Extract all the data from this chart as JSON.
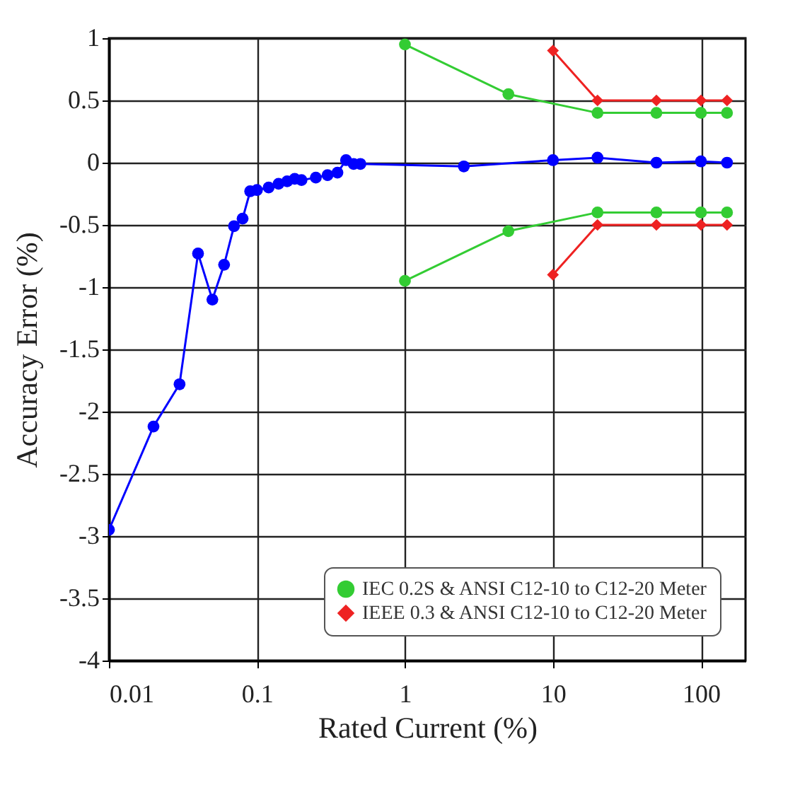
{
  "chart_data": {
    "type": "line",
    "xlabel": "Rated Current (%)",
    "ylabel": "Accuracy Error (%)",
    "log": "x",
    "grid": true,
    "legend": "bottom right",
    "xlim": [
      0.01,
      200
    ],
    "xticks": [
      0.01,
      0.1,
      1,
      10,
      100
    ],
    "ylim": [
      -4,
      1
    ],
    "yticks": [
      -4,
      -3.5,
      -3,
      -2.5,
      -2,
      -1.5,
      -1,
      -0.5,
      0,
      0.5,
      1
    ],
    "series": [
      {
        "color": "#0000ff",
        "marker": "circle",
        "x": [
          0.01,
          0.02,
          0.03,
          0.04,
          0.05,
          0.06,
          0.07,
          0.08,
          0.09,
          0.1,
          0.12,
          0.14,
          0.16,
          0.18,
          0.2,
          0.25,
          0.3,
          0.35,
          0.4,
          0.45,
          0.5,
          2.5,
          10,
          20,
          50,
          100,
          150
        ],
        "values": [
          -2.95,
          -2.12,
          -1.78,
          -0.73,
          -1.1,
          -0.82,
          -0.51,
          -0.45,
          -0.23,
          -0.22,
          -0.2,
          -0.17,
          -0.15,
          -0.13,
          -0.14,
          -0.12,
          -0.1,
          -0.08,
          0.02,
          -0.01,
          -0.01,
          -0.03,
          0.02,
          0.04,
          0,
          0.01,
          0
        ]
      },
      {
        "name": "IEC 0.2S & ANSI C12-10 to C12-20 Meter",
        "color": "#33cc33",
        "marker": "circle",
        "x": [
          1,
          5,
          20,
          50,
          100,
          150
        ],
        "values": [
          0.95,
          0.55,
          0.4,
          0.4,
          0.4,
          0.4
        ]
      },
      {
        "color": "#33cc33",
        "marker": "circle",
        "x": [
          1,
          5,
          20,
          50,
          100,
          150
        ],
        "values": [
          -0.95,
          -0.55,
          -0.4,
          -0.4,
          -0.4,
          -0.4
        ]
      },
      {
        "name": "IEEE 0.3 & ANSI C12-10 to C12-20 Meter",
        "color": "#ee2222",
        "marker": "diamond",
        "x": [
          10,
          20,
          50,
          100,
          150
        ],
        "values": [
          0.9,
          0.5,
          0.5,
          0.5,
          0.5
        ]
      },
      {
        "color": "#ee2222",
        "marker": "diamond",
        "x": [
          10,
          20,
          50,
          100,
          150
        ],
        "values": [
          -0.9,
          -0.5,
          -0.5,
          -0.5,
          -0.5
        ]
      }
    ]
  }
}
